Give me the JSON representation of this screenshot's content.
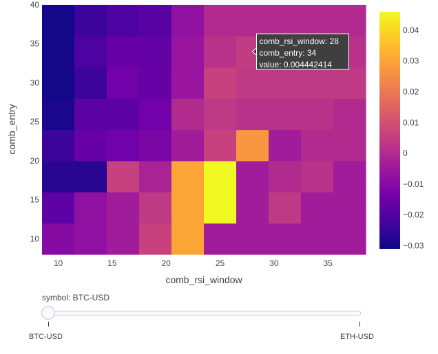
{
  "chart_data": {
    "type": "heatmap",
    "xlabel": "comb_rsi_window",
    "ylabel": "comb_entry",
    "x": [
      10,
      13,
      16,
      19,
      22,
      25,
      28,
      31,
      34,
      37
    ],
    "y": [
      10,
      14,
      18,
      22,
      26,
      30,
      34,
      38
    ],
    "z": [
      [
        -0.01,
        -0.008,
        -0.004,
        0.006,
        0.03,
        -0.004,
        -0.004,
        -0.004,
        -0.004,
        -0.004
      ],
      [
        -0.018,
        -0.008,
        -0.004,
        0.004,
        0.03,
        0.046,
        -0.004,
        0.004,
        -0.004,
        -0.004
      ],
      [
        -0.027,
        -0.027,
        0.006,
        -0.002,
        0.03,
        0.046,
        -0.004,
        0.0,
        0.002,
        -0.004
      ],
      [
        -0.024,
        -0.016,
        -0.014,
        -0.012,
        -0.004,
        0.006,
        0.027,
        -0.004,
        0.0,
        0.0
      ],
      [
        -0.029,
        -0.018,
        -0.018,
        -0.014,
        0.0,
        0.004,
        0.002,
        0.002,
        0.002,
        0.0
      ],
      [
        -0.03,
        -0.024,
        -0.014,
        -0.016,
        -0.006,
        0.006,
        0.004,
        0.004,
        0.004,
        0.004
      ],
      [
        -0.03,
        -0.021,
        -0.016,
        -0.017,
        -0.006,
        0.002,
        0.004442414,
        0.002,
        0.002,
        0.002
      ],
      [
        -0.03,
        -0.024,
        -0.021,
        -0.019,
        -0.008,
        0.0,
        0.0,
        0.0,
        0.0,
        0.0
      ]
    ],
    "xaxis": {
      "range": [
        8.5,
        38.5
      ],
      "ticks": [
        "10",
        "15",
        "20",
        "25",
        "30",
        "35"
      ],
      "tickvals": [
        10,
        15,
        20,
        25,
        30,
        35
      ]
    },
    "yaxis": {
      "range": [
        8,
        40
      ],
      "ticks": [
        "10",
        "15",
        "20",
        "25",
        "30",
        "35",
        "40"
      ],
      "tickvals": [
        10,
        15,
        20,
        25,
        30,
        35,
        40
      ]
    },
    "colorbar": {
      "range": [
        -0.031,
        0.046
      ],
      "ticks": [
        "−0.03",
        "−0.02",
        "−0.01",
        "0",
        "0.01",
        "0.02",
        "0.03",
        "0.04"
      ],
      "tickvals": [
        -0.03,
        -0.02,
        -0.01,
        0,
        0.01,
        0.02,
        0.03,
        0.04
      ],
      "colorscale": "plasma"
    },
    "hover": {
      "x": 28,
      "y": 34,
      "lines": [
        "comb_rsi_window: 28",
        "comb_entry: 34",
        "value: 0.004442414"
      ]
    }
  },
  "slider": {
    "label": "symbol: BTC-USD",
    "steps": [
      "BTC-USD",
      "ETH-USD"
    ],
    "active": 0
  }
}
